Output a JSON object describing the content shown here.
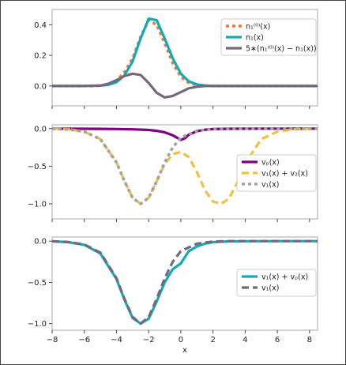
{
  "chart_data": [
    {
      "type": "line",
      "xlim": [
        -8,
        8.5
      ],
      "ylim": [
        -0.13,
        0.5
      ],
      "yticks": [
        "0.4",
        "0.2",
        "0.0"
      ],
      "ytick_values": [
        0.4,
        0.2,
        0.0
      ],
      "grid": false,
      "legend_placement": "top-right",
      "series": [
        {
          "name": "n₁⁽⁰⁾(x)",
          "color": "#f07838",
          "style": "dotted",
          "x": [
            -8,
            -6,
            -5,
            -4.5,
            -4,
            -3.5,
            -3,
            -2.5,
            -2,
            -1.5,
            -1,
            -0.5,
            0,
            0.5,
            1,
            1.5,
            2,
            3,
            4,
            6,
            8.5
          ],
          "y": [
            0,
            0,
            0.002,
            0.01,
            0.035,
            0.09,
            0.18,
            0.32,
            0.43,
            0.4,
            0.28,
            0.15,
            0.06,
            0.02,
            0.006,
            0.002,
            0,
            0,
            0,
            0,
            0
          ]
        },
        {
          "name": "n₁(x)",
          "color": "#10aab8",
          "style": "solid",
          "x": [
            -8,
            -6,
            -5,
            -4.5,
            -4,
            -3.5,
            -3,
            -2.5,
            -2,
            -1.5,
            -1,
            -0.5,
            0,
            0.5,
            1,
            1.5,
            2,
            3,
            4,
            6,
            8.5
          ],
          "y": [
            0,
            0,
            0.002,
            0.008,
            0.025,
            0.07,
            0.16,
            0.31,
            0.44,
            0.43,
            0.31,
            0.18,
            0.08,
            0.03,
            0.01,
            0.003,
            0,
            0,
            0,
            0,
            0
          ]
        },
        {
          "name": "5∗(n₁⁽⁰⁾(x) − n₁(x))",
          "color": "#75677c",
          "style": "solid",
          "x": [
            -8,
            -6,
            -5,
            -4.5,
            -4,
            -3.5,
            -3,
            -2.5,
            -2,
            -1.5,
            -1,
            -0.5,
            0,
            0.5,
            1,
            1.5,
            2,
            3,
            4,
            6,
            8.5
          ],
          "y": [
            0,
            0,
            0.002,
            0.015,
            0.038,
            0.065,
            0.08,
            0.072,
            0.02,
            -0.045,
            -0.075,
            -0.065,
            -0.04,
            -0.015,
            -0.005,
            0,
            0,
            0,
            0,
            0,
            0
          ]
        }
      ]
    },
    {
      "type": "line",
      "xlim": [
        -8,
        8.5
      ],
      "ylim": [
        -1.2,
        0.05
      ],
      "yticks": [
        "0.0",
        "-0.5",
        "-1.0"
      ],
      "ytick_values": [
        0,
        -0.5,
        -1.0
      ],
      "grid": false,
      "legend_placement": "right",
      "series": [
        {
          "name": "vₚ(x)",
          "color": "#800080",
          "style": "solid",
          "x": [
            -8,
            -6,
            -4,
            -3,
            -2,
            -1.5,
            -1,
            -0.5,
            -0.25,
            0,
            0.25,
            0.5,
            1,
            1.5,
            2,
            3,
            4,
            6,
            8.5
          ],
          "y": [
            0,
            -0.002,
            -0.006,
            -0.01,
            -0.018,
            -0.03,
            -0.05,
            -0.09,
            -0.12,
            -0.15,
            -0.13,
            -0.08,
            -0.035,
            -0.015,
            -0.007,
            -0.003,
            -0.001,
            0,
            0
          ]
        },
        {
          "name": "v₁(x) + v₂(x)",
          "color": "#f0c040",
          "style": "dashed",
          "x": [
            -8,
            -7,
            -6,
            -5,
            -4,
            -3.5,
            -3,
            -2.5,
            -2,
            -1.5,
            -1,
            -0.5,
            0,
            0.5,
            1,
            1.5,
            2,
            2.5,
            3,
            3.5,
            4,
            5,
            6,
            7,
            8.5
          ],
          "y": [
            -0.002,
            -0.01,
            -0.04,
            -0.14,
            -0.45,
            -0.7,
            -0.92,
            -1.0,
            -0.92,
            -0.7,
            -0.47,
            -0.34,
            -0.31,
            -0.38,
            -0.58,
            -0.82,
            -0.97,
            -1.0,
            -0.93,
            -0.72,
            -0.46,
            -0.14,
            -0.04,
            -0.01,
            -0.002
          ]
        },
        {
          "name": "v₁(x)",
          "color": "#a0a0a8",
          "style": "dotted",
          "x": [
            -8,
            -7,
            -6,
            -5,
            -4,
            -3.5,
            -3,
            -2.5,
            -2,
            -1.5,
            -1,
            -0.5,
            0,
            1,
            2,
            3,
            4,
            6,
            8.5
          ],
          "y": [
            -0.002,
            -0.01,
            -0.04,
            -0.14,
            -0.45,
            -0.7,
            -0.92,
            -1.0,
            -0.92,
            -0.7,
            -0.45,
            -0.25,
            -0.12,
            -0.03,
            -0.005,
            0,
            0,
            0,
            0
          ]
        }
      ]
    },
    {
      "type": "line",
      "xlim": [
        -8,
        8.5
      ],
      "ylim": [
        -1.08,
        0.05
      ],
      "yticks": [
        "0.0",
        "-0.5",
        "-1.0"
      ],
      "ytick_values": [
        0,
        -0.5,
        -1.0
      ],
      "xticks": [
        "-8",
        "-6",
        "-4",
        "-2",
        "0",
        "2",
        "4",
        "6",
        "8"
      ],
      "xtick_values": [
        -8,
        -6,
        -4,
        -2,
        0,
        2,
        4,
        6,
        8
      ],
      "xlabel": "x",
      "grid": false,
      "legend_placement": "right",
      "series": [
        {
          "name": "v₁(x) + vₚ(x)",
          "color": "#10aab8",
          "style": "solid",
          "x": [
            -8,
            -7,
            -6,
            -5,
            -4,
            -3.5,
            -3,
            -2.5,
            -2,
            -1.5,
            -1,
            -0.5,
            0,
            0.5,
            1,
            1.5,
            2,
            3,
            4,
            6,
            8.5
          ],
          "y": [
            -0.002,
            -0.012,
            -0.045,
            -0.15,
            -0.46,
            -0.71,
            -0.93,
            -1.0,
            -0.94,
            -0.73,
            -0.5,
            -0.34,
            -0.27,
            -0.12,
            -0.065,
            -0.03,
            -0.012,
            -0.003,
            -0.001,
            0,
            0
          ]
        },
        {
          "name": "v₁(x)",
          "color": "#75677c",
          "style": "dashed",
          "x": [
            -8,
            -7,
            -6,
            -5,
            -4,
            -3.5,
            -3,
            -2.5,
            -2,
            -1.5,
            -1,
            -0.5,
            0,
            1,
            2,
            3,
            4,
            6,
            8.5
          ],
          "y": [
            -0.002,
            -0.01,
            -0.04,
            -0.14,
            -0.45,
            -0.7,
            -0.92,
            -1.0,
            -0.92,
            -0.7,
            -0.45,
            -0.25,
            -0.12,
            -0.03,
            -0.005,
            0,
            0,
            0,
            0
          ]
        }
      ]
    }
  ]
}
